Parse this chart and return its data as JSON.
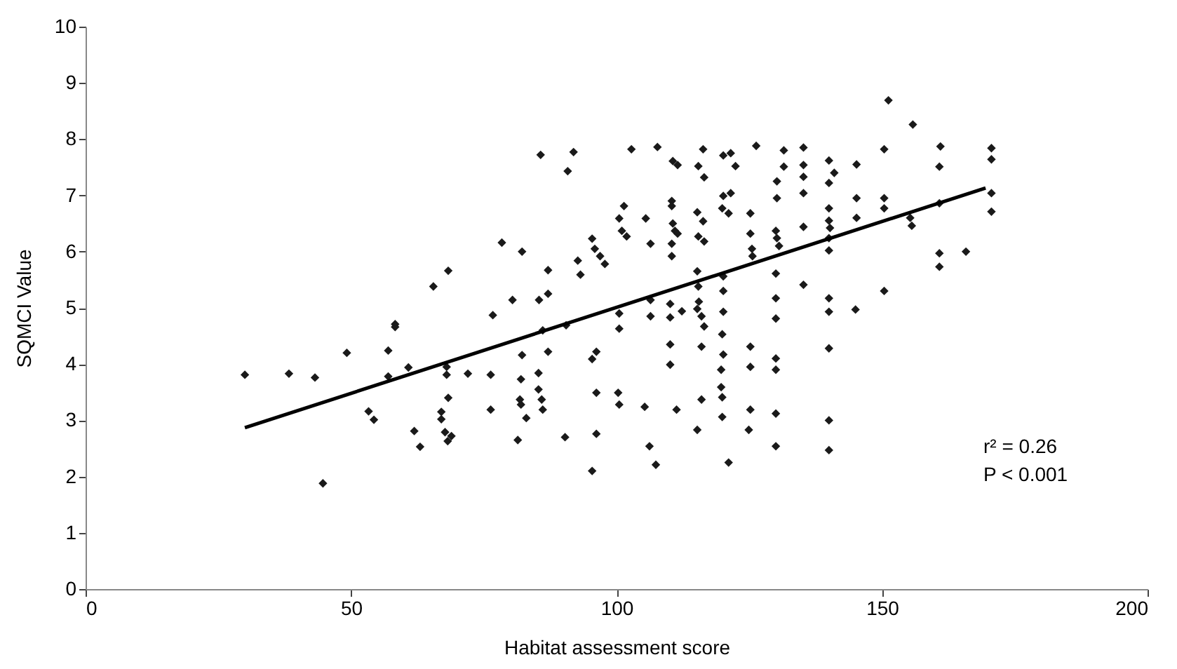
{
  "chart_data": {
    "type": "scatter",
    "xlabel": "Habitat assessment score",
    "ylabel": "SQMCI Value",
    "xlim": [
      0,
      200
    ],
    "xticks": [
      0,
      50,
      100,
      150,
      200
    ],
    "ylim": [
      0,
      10
    ],
    "yticks": [
      0,
      1,
      2,
      3,
      4,
      5,
      6,
      7,
      8,
      9,
      10
    ],
    "grid": false,
    "annotations": [
      "r² = 0.26",
      "P < 0.001"
    ],
    "series": [
      {
        "marker": "diamond",
        "color": "#1a1a1a",
        "x": [
          30.0,
          38.3,
          43.2,
          44.7,
          49.2,
          53.3,
          54.3,
          57.0,
          58.3,
          58.3,
          57.0,
          60.8,
          61.9,
          63.0,
          65.5,
          68.3,
          68.0,
          68.0,
          68.3,
          67.0,
          67.0,
          67.7,
          68.9,
          68.2,
          72.0,
          76.3,
          76.3,
          76.7,
          85.7,
          91.9,
          90.8,
          102.8,
          107.7,
          110.6,
          111.5,
          115.4,
          116.5,
          116.3,
          120.1,
          121.5,
          122.4,
          126.3,
          78.4,
          82.2,
          87.1,
          92.7,
          93.2,
          95.4,
          95.9,
          96.9,
          97.8,
          101.4,
          100.5,
          101.0,
          101.9,
          105.5,
          106.4,
          110.4,
          110.4,
          110.4,
          110.4,
          110.6,
          111.0,
          111.5,
          115.2,
          116.3,
          115.4,
          116.5,
          120.1,
          121.5,
          119.9,
          121.1,
          125.2,
          125.2,
          125.5,
          125.6,
          80.4,
          85.4,
          87.1,
          86.1,
          90.5,
          100.5,
          100.5,
          106.4,
          106.4,
          110.1,
          110.1,
          112.3,
          115.2,
          115.2,
          115.4,
          115.5,
          116.0,
          116.5,
          116.0,
          120.1,
          120.1,
          120.1,
          120.1,
          119.9,
          119.9,
          119.9,
          119.7,
          119.7,
          121.1,
          110.1,
          110.1,
          111.3,
          115.2,
          116.0,
          125.2,
          125.2,
          125.2,
          124.9,
          82.2,
          87.1,
          82.0,
          81.8,
          82.0,
          83.0,
          85.3,
          85.3,
          85.9,
          86.1,
          81.4,
          90.3,
          95.4,
          95.4,
          96.2,
          96.2,
          96.2,
          100.3,
          100.5,
          105.3,
          106.2,
          107.4,
          151.2,
          155.8,
          131.5,
          131.5,
          130.2,
          130.2,
          135.2,
          135.2,
          135.2,
          135.2,
          140.0,
          141.0,
          140.0,
          145.2,
          150.4,
          161.0,
          160.8,
          170.6,
          170.6,
          130.0,
          130.2,
          130.6,
          135.2,
          140.0,
          140.0,
          140.2,
          140.0,
          140.0,
          145.2,
          145.2,
          150.4,
          150.4,
          150.4,
          155.3,
          155.6,
          160.8,
          160.8,
          160.8,
          165.8,
          170.6,
          170.6,
          130.0,
          130.0,
          130.0,
          135.2,
          140.0,
          140.0,
          145.0,
          130.0,
          130.0,
          140.0,
          130.0,
          130.0,
          140.0,
          140.0
        ],
        "values": [
          3.81,
          3.83,
          3.76,
          1.88,
          4.2,
          3.16,
          3.01,
          4.24,
          4.71,
          4.66,
          3.78,
          3.94,
          2.81,
          2.53,
          5.38,
          5.66,
          3.95,
          3.81,
          3.4,
          3.15,
          3.02,
          2.79,
          2.72,
          2.63,
          3.83,
          3.81,
          3.19,
          4.87,
          7.72,
          7.77,
          7.43,
          7.82,
          7.86,
          7.61,
          7.54,
          7.52,
          7.32,
          7.82,
          7.71,
          7.75,
          7.52,
          7.88,
          6.16,
          6.0,
          5.67,
          5.84,
          5.59,
          6.23,
          6.05,
          5.92,
          5.78,
          6.81,
          6.59,
          6.37,
          6.27,
          6.59,
          6.14,
          6.9,
          6.81,
          6.14,
          5.92,
          6.5,
          6.37,
          6.32,
          6.7,
          6.54,
          6.27,
          6.18,
          6.99,
          7.04,
          6.77,
          6.68,
          6.68,
          6.32,
          6.05,
          5.92,
          5.14,
          5.14,
          5.25,
          4.6,
          4.69,
          4.9,
          4.63,
          5.14,
          4.85,
          5.07,
          4.83,
          4.94,
          5.65,
          4.98,
          5.38,
          5.11,
          4.85,
          4.67,
          4.31,
          5.56,
          5.3,
          4.93,
          4.17,
          4.53,
          3.41,
          3.06,
          3.9,
          3.59,
          2.25,
          4.35,
          3.99,
          3.19,
          2.83,
          3.37,
          4.31,
          3.95,
          3.19,
          2.83,
          4.16,
          4.22,
          3.73,
          3.37,
          3.28,
          3.04,
          3.84,
          3.55,
          3.37,
          3.19,
          2.65,
          2.7,
          2.1,
          4.09,
          2.76,
          4.22,
          3.49,
          3.49,
          3.28,
          3.24,
          2.54,
          2.21,
          8.69,
          8.26,
          7.8,
          7.51,
          7.25,
          6.95,
          7.85,
          7.54,
          7.33,
          7.04,
          7.62,
          7.4,
          7.22,
          7.55,
          7.82,
          7.87,
          7.51,
          7.84,
          7.64,
          6.37,
          6.24,
          6.1,
          6.44,
          6.77,
          6.55,
          6.42,
          6.24,
          6.02,
          6.95,
          6.6,
          6.95,
          6.77,
          5.3,
          6.6,
          6.46,
          6.86,
          5.97,
          5.73,
          6.0,
          7.04,
          6.71,
          5.61,
          5.17,
          4.81,
          5.41,
          5.17,
          4.93,
          4.97,
          4.1,
          3.9,
          4.28,
          3.12,
          2.54,
          3.0,
          2.47
        ]
      },
      {
        "type": "line",
        "marker": "none",
        "color": "#000000",
        "x": [
          30.0,
          169.5
        ],
        "values": [
          2.87,
          7.13
        ]
      }
    ]
  }
}
